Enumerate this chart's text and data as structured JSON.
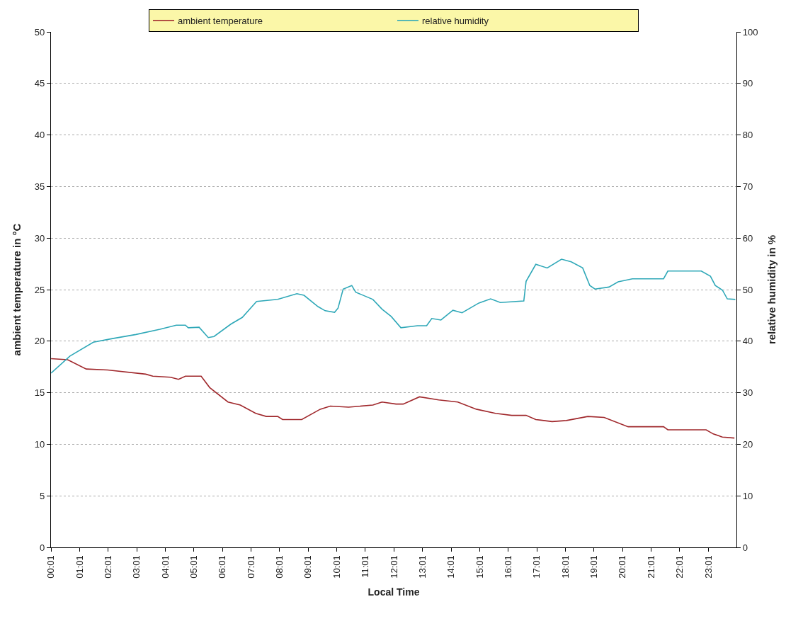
{
  "chart_data": {
    "type": "line",
    "xlabel": "Local Time",
    "ylabel": "ambient temperature in °C",
    "y2label": "relative humidity in %",
    "xlim": [
      0.017,
      24.0
    ],
    "xticks": [
      {
        "value": 0.017,
        "label": "00:01"
      },
      {
        "value": 1.017,
        "label": "01:01"
      },
      {
        "value": 2.017,
        "label": "02:01"
      },
      {
        "value": 3.017,
        "label": "03:01"
      },
      {
        "value": 4.017,
        "label": "04:01"
      },
      {
        "value": 5.017,
        "label": "05:01"
      },
      {
        "value": 6.017,
        "label": "06:01"
      },
      {
        "value": 7.017,
        "label": "07:01"
      },
      {
        "value": 8.017,
        "label": "08:01"
      },
      {
        "value": 9.017,
        "label": "09:01"
      },
      {
        "value": 10.017,
        "label": "10:01"
      },
      {
        "value": 11.017,
        "label": "11:01"
      },
      {
        "value": 12.017,
        "label": "12:01"
      },
      {
        "value": 13.017,
        "label": "13:01"
      },
      {
        "value": 14.017,
        "label": "14:01"
      },
      {
        "value": 15.017,
        "label": "15:01"
      },
      {
        "value": 16.017,
        "label": "16:01"
      },
      {
        "value": 17.017,
        "label": "17:01"
      },
      {
        "value": 18.017,
        "label": "18:01"
      },
      {
        "value": 19.017,
        "label": "19:01"
      },
      {
        "value": 20.017,
        "label": "20:01"
      },
      {
        "value": 21.017,
        "label": "21:01"
      },
      {
        "value": 22.017,
        "label": "22:01"
      },
      {
        "value": 23.017,
        "label": "23:01"
      }
    ],
    "ylim": [
      0,
      50
    ],
    "yticks": [
      0,
      5,
      10,
      15,
      20,
      25,
      30,
      35,
      40,
      45,
      50
    ],
    "y2lim": [
      0,
      100
    ],
    "y2ticks": [
      0,
      10,
      20,
      30,
      40,
      50,
      60,
      70,
      80,
      90,
      100
    ],
    "grid": "y",
    "legend": "top",
    "line_style": "solid",
    "marker": "none",
    "series": [
      {
        "name": "ambient temperature",
        "color": "#a0282c",
        "x": [
          0.02,
          0.6,
          1.25,
          2.0,
          3.33,
          3.58,
          4.2,
          4.48,
          4.72,
          5.27,
          5.57,
          6.21,
          6.64,
          7.18,
          7.55,
          7.95,
          8.12,
          8.79,
          9.44,
          9.79,
          10.43,
          11.28,
          11.6,
          12.09,
          12.34,
          12.91,
          13.58,
          14.25,
          14.9,
          15.57,
          16.14,
          16.64,
          16.98,
          17.55,
          18.05,
          18.8,
          19.37,
          20.21,
          21.45,
          21.6,
          22.94,
          23.19,
          23.51,
          23.93
        ],
        "values": [
          18.3,
          18.2,
          17.3,
          17.2,
          16.8,
          16.6,
          16.5,
          16.3,
          16.6,
          16.6,
          15.5,
          14.1,
          13.8,
          13.0,
          12.7,
          12.7,
          12.4,
          12.4,
          13.4,
          13.7,
          13.6,
          13.8,
          14.1,
          13.9,
          13.9,
          14.6,
          14.3,
          14.1,
          13.4,
          13.0,
          12.8,
          12.8,
          12.4,
          12.2,
          12.3,
          12.7,
          12.6,
          11.7,
          11.7,
          11.4,
          11.4,
          11.0,
          10.7,
          10.6
        ]
      },
      {
        "name": "relative humidity",
        "color": "#2fa8b8",
        "axis": "y2",
        "x": [
          0.02,
          0.68,
          1.5,
          2.17,
          2.99,
          3.83,
          4.4,
          4.72,
          4.82,
          5.2,
          5.52,
          5.72,
          6.31,
          6.71,
          7.21,
          7.95,
          8.62,
          8.87,
          9.36,
          9.61,
          9.94,
          10.06,
          10.24,
          10.54,
          10.68,
          11.28,
          11.6,
          11.92,
          12.26,
          12.84,
          13.16,
          13.34,
          13.66,
          14.08,
          14.4,
          14.99,
          15.4,
          15.74,
          16.56,
          16.64,
          16.98,
          17.38,
          17.88,
          18.22,
          18.62,
          18.87,
          19.05,
          19.54,
          19.86,
          20.36,
          21.45,
          21.6,
          22.77,
          23.09,
          23.26,
          23.51,
          23.68,
          23.96
        ],
        "values": [
          33.8,
          37.1,
          39.8,
          40.5,
          41.3,
          42.3,
          43.1,
          43.1,
          42.6,
          42.7,
          40.7,
          40.9,
          43.3,
          44.6,
          47.7,
          48.1,
          49.2,
          48.9,
          46.7,
          45.9,
          45.6,
          46.4,
          50.1,
          50.8,
          49.5,
          48.1,
          46.2,
          44.8,
          42.6,
          43.0,
          43.0,
          44.4,
          44.1,
          46.0,
          45.5,
          47.4,
          48.2,
          47.5,
          47.8,
          51.6,
          54.9,
          54.2,
          55.9,
          55.4,
          54.2,
          50.8,
          50.1,
          50.5,
          51.5,
          52.1,
          52.1,
          53.6,
          53.6,
          52.6,
          50.8,
          49.9,
          48.2,
          48.1
        ]
      }
    ]
  }
}
